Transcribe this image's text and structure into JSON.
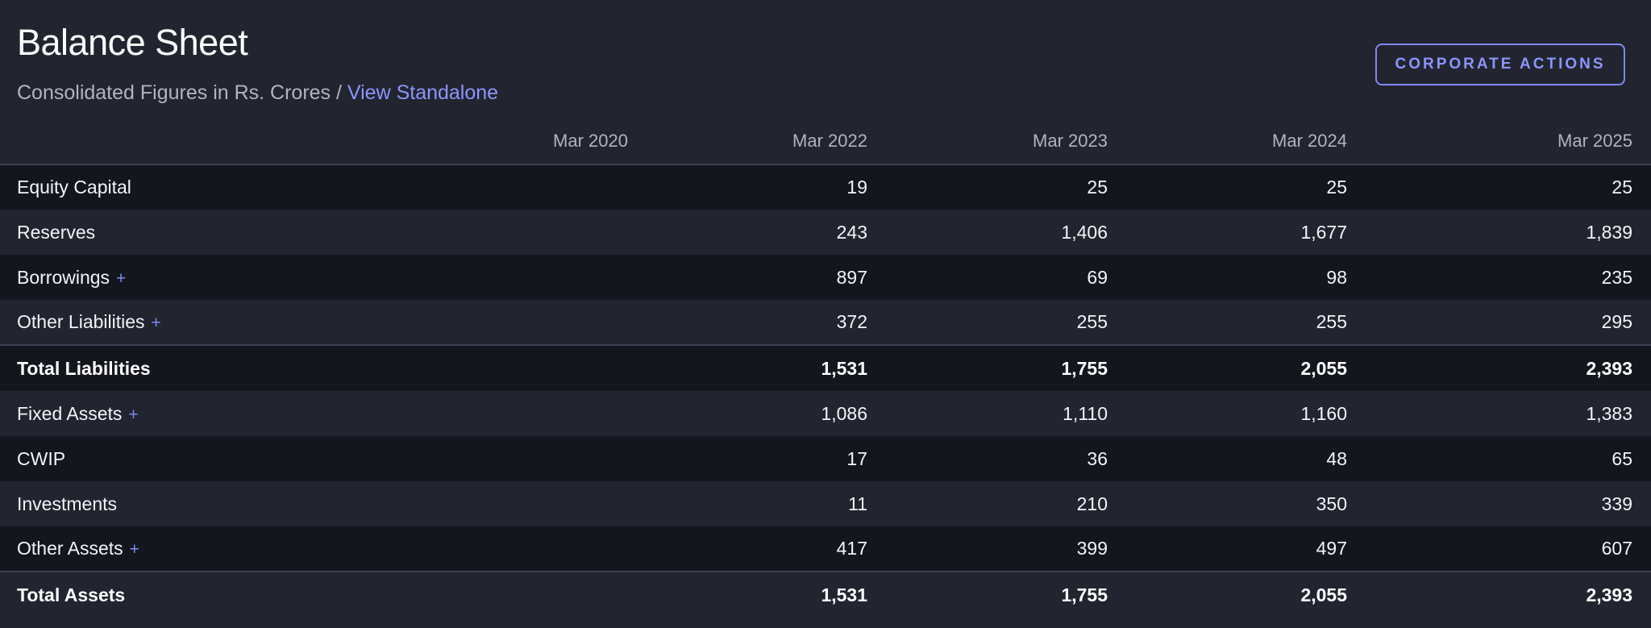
{
  "header": {
    "title": "Balance Sheet",
    "subtitle_text": "Consolidated Figures in Rs. Crores / ",
    "subtitle_link": "View Standalone",
    "corporate_actions_label": "CORPORATE ACTIONS"
  },
  "table": {
    "columns": [
      "Mar 2020",
      "Mar 2022",
      "Mar 2023",
      "Mar 2024",
      "Mar 2025"
    ],
    "expand_symbol": "+",
    "rows": [
      {
        "label": "Equity Capital",
        "expandable": false,
        "total": false,
        "values": [
          "",
          "19",
          "25",
          "25",
          "25"
        ]
      },
      {
        "label": "Reserves",
        "expandable": false,
        "total": false,
        "values": [
          "",
          "243",
          "1,406",
          "1,677",
          "1,839"
        ]
      },
      {
        "label": "Borrowings",
        "expandable": true,
        "total": false,
        "values": [
          "",
          "897",
          "69",
          "98",
          "235"
        ]
      },
      {
        "label": "Other Liabilities",
        "expandable": true,
        "total": false,
        "values": [
          "",
          "372",
          "255",
          "255",
          "295"
        ]
      },
      {
        "label": "Total Liabilities",
        "expandable": false,
        "total": true,
        "values": [
          "",
          "1,531",
          "1,755",
          "2,055",
          "2,393"
        ]
      },
      {
        "label": "Fixed Assets",
        "expandable": true,
        "total": false,
        "values": [
          "",
          "1,086",
          "1,110",
          "1,160",
          "1,383"
        ]
      },
      {
        "label": "CWIP",
        "expandable": false,
        "total": false,
        "values": [
          "",
          "17",
          "36",
          "48",
          "65"
        ]
      },
      {
        "label": "Investments",
        "expandable": false,
        "total": false,
        "values": [
          "",
          "11",
          "210",
          "350",
          "339"
        ]
      },
      {
        "label": "Other Assets",
        "expandable": true,
        "total": false,
        "values": [
          "",
          "417",
          "399",
          "497",
          "607"
        ]
      },
      {
        "label": "Total Assets",
        "expandable": false,
        "total": true,
        "values": [
          "",
          "1,531",
          "1,755",
          "2,055",
          "2,393"
        ]
      }
    ]
  },
  "colors": {
    "background": "#22252f",
    "row_dark": "#14161e",
    "accent": "#8b95ff"
  }
}
